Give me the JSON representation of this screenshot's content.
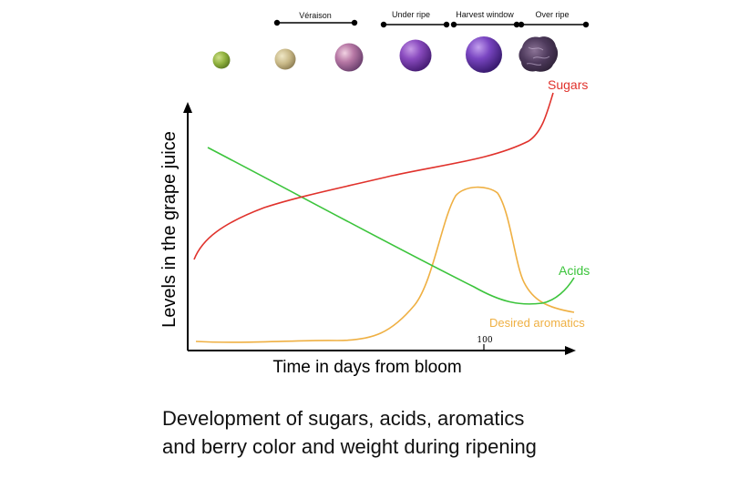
{
  "stages": [
    "Véraison",
    "Under ripe",
    "Harvest window",
    "Over ripe"
  ],
  "curves": {
    "sugars": {
      "label": "Sugars",
      "color": "#e0322c"
    },
    "acids": {
      "label": "Acids",
      "color": "#3cc43c"
    },
    "aromatics": {
      "label": "Desired aromatics",
      "color": "#efb043"
    }
  },
  "axes": {
    "y_label": "Levels in the grape juice",
    "x_label": "Time in days from bloom",
    "x_tick": "100"
  },
  "caption": {
    "line1": "Development of sugars, acids, aromatics",
    "line2": "and berry color and weight during ripening"
  }
}
